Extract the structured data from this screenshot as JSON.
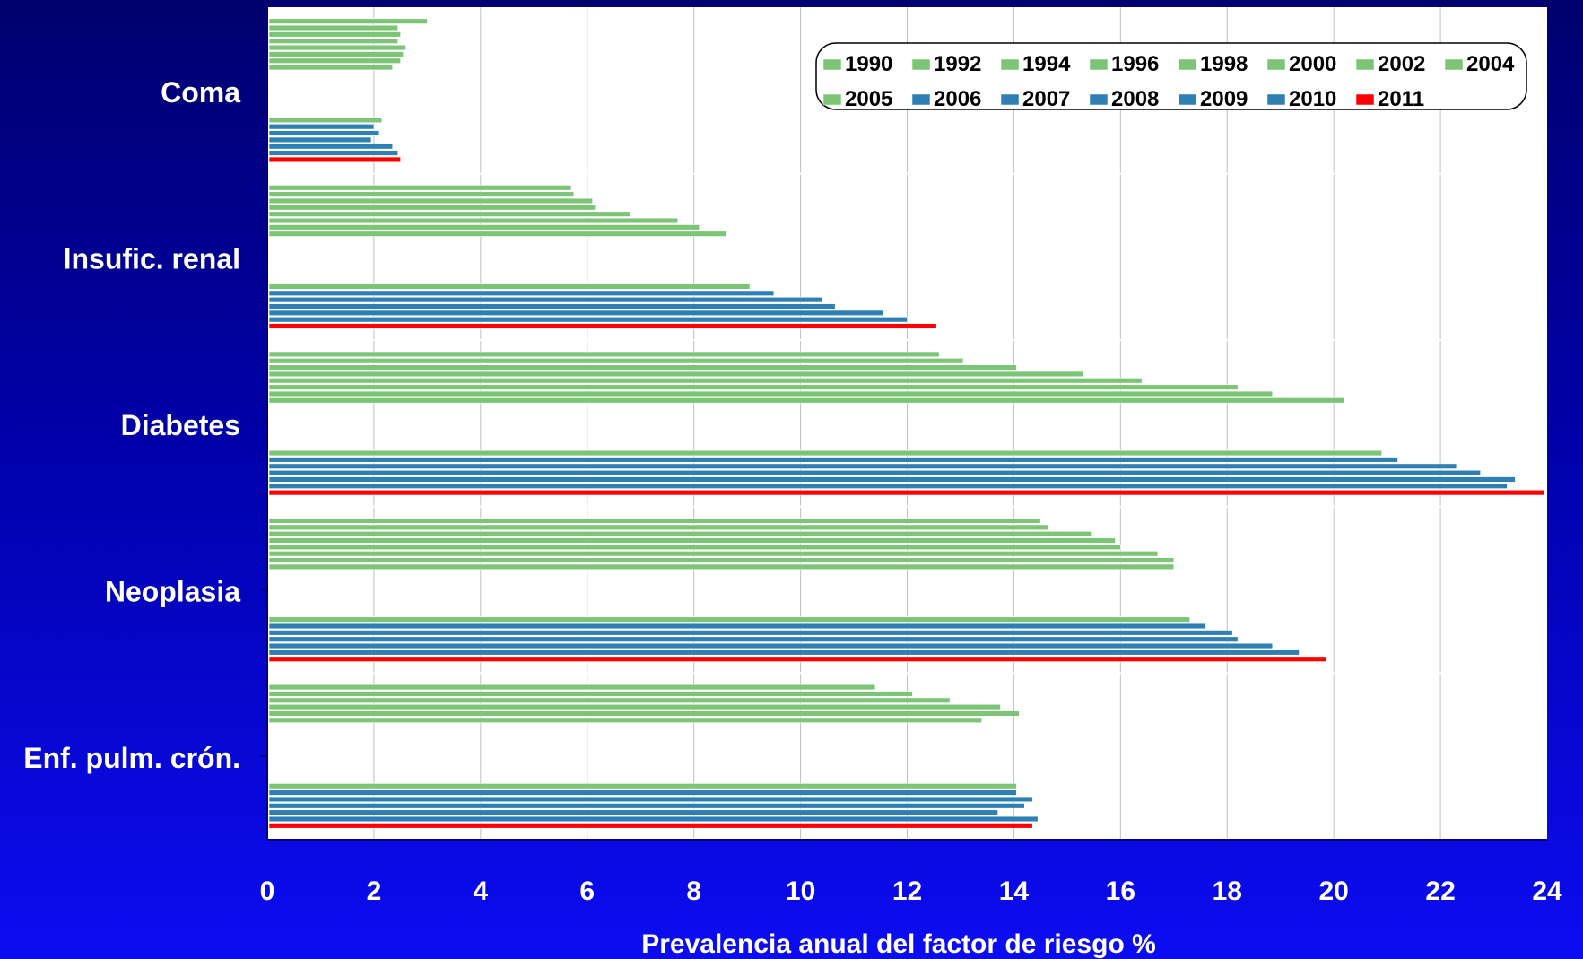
{
  "chart_data": {
    "type": "bar",
    "orientation": "horizontal",
    "xlabel": "Prevalencia anual del factor de riesgo %",
    "xlim": [
      0,
      24
    ],
    "xticks": [
      0,
      2,
      4,
      6,
      8,
      10,
      12,
      14,
      16,
      18,
      20,
      22,
      24
    ],
    "grid": "vertical",
    "legend_position": "top-right",
    "categories": [
      "Coma",
      "Insufic. renal",
      "Diabetes",
      "Neoplasia",
      "Enf. pulm. crón."
    ],
    "series": [
      {
        "name": "1990",
        "color": "#7cc576",
        "values": [
          3.0,
          5.7,
          12.6,
          14.5,
          11.4
        ]
      },
      {
        "name": "",
        "color": "#7cc576",
        "values": [
          2.45,
          5.75,
          13.05,
          14.65,
          12.1
        ]
      },
      {
        "name": "1992",
        "color": "#7cc576",
        "values": [
          2.5,
          6.1,
          14.05,
          15.45,
          12.8
        ]
      },
      {
        "name": "",
        "color": "#7cc576",
        "values": [
          2.45,
          6.15,
          15.3,
          15.9,
          13.75
        ]
      },
      {
        "name": "1994",
        "color": "#7cc576",
        "values": [
          2.6,
          6.8,
          16.4,
          16.0,
          14.1
        ]
      },
      {
        "name": "",
        "color": "#7cc576",
        "values": [
          2.55,
          7.7,
          18.2,
          16.7,
          13.4
        ]
      },
      {
        "name": "1996",
        "color": "#7cc576",
        "values": [
          2.5,
          8.1,
          18.85,
          17.0,
          null
        ]
      },
      {
        "name": "",
        "color": "#7cc576",
        "values": [
          2.35,
          8.6,
          20.2,
          17.0,
          null
        ]
      },
      {
        "name": "1998",
        "color": "#7cc576",
        "values": [
          null,
          null,
          null,
          null,
          null
        ]
      },
      {
        "name": "",
        "color": "#7cc576",
        "values": [
          null,
          null,
          null,
          null,
          null
        ]
      },
      {
        "name": "2000",
        "color": "#7cc576",
        "values": [
          null,
          null,
          null,
          null,
          null
        ]
      },
      {
        "name": "",
        "color": "#7cc576",
        "values": [
          null,
          null,
          null,
          null,
          null
        ]
      },
      {
        "name": "2002",
        "color": "#7cc576",
        "values": [
          null,
          null,
          null,
          null,
          null
        ]
      },
      {
        "name": "",
        "color": "#7cc576",
        "values": [
          null,
          null,
          null,
          null,
          null
        ]
      },
      {
        "name": "2004",
        "color": "#7cc576",
        "values": [
          null,
          null,
          null,
          null,
          null
        ]
      },
      {
        "name": "2005",
        "color": "#7cc576",
        "values": [
          2.15,
          9.05,
          20.9,
          17.3,
          14.05
        ]
      },
      {
        "name": "2006",
        "color": "#2e7fb3",
        "values": [
          2.0,
          9.5,
          21.2,
          17.6,
          14.05
        ]
      },
      {
        "name": "2007",
        "color": "#2e7fb3",
        "values": [
          2.1,
          10.4,
          22.3,
          18.1,
          14.35
        ]
      },
      {
        "name": "2008",
        "color": "#2e7fb3",
        "values": [
          1.95,
          10.65,
          22.75,
          18.2,
          14.2
        ]
      },
      {
        "name": "2009",
        "color": "#2e7fb3",
        "values": [
          2.35,
          11.55,
          23.4,
          18.85,
          13.7
        ]
      },
      {
        "name": "2010",
        "color": "#2e7fb3",
        "values": [
          2.45,
          12.0,
          23.25,
          19.35,
          14.45
        ]
      },
      {
        "name": "2011",
        "color": "#ff0000",
        "values": [
          2.5,
          12.55,
          23.95,
          19.85,
          14.35
        ]
      }
    ],
    "legend": [
      {
        "label": "1990",
        "color": "#7cc576"
      },
      {
        "label": "1992",
        "color": "#7cc576"
      },
      {
        "label": "1994",
        "color": "#7cc576"
      },
      {
        "label": "1996",
        "color": "#7cc576"
      },
      {
        "label": "1998",
        "color": "#7cc576"
      },
      {
        "label": "2000",
        "color": "#7cc576"
      },
      {
        "label": "2002",
        "color": "#7cc576"
      },
      {
        "label": "2004",
        "color": "#7cc576"
      },
      {
        "label": "2005",
        "color": "#7cc576"
      },
      {
        "label": "2006",
        "color": "#2e7fb3"
      },
      {
        "label": "2007",
        "color": "#2e7fb3"
      },
      {
        "label": "2008",
        "color": "#2e7fb3"
      },
      {
        "label": "2009",
        "color": "#2e7fb3"
      },
      {
        "label": "2010",
        "color": "#2e7fb3"
      },
      {
        "label": "2011",
        "color": "#ff0000"
      }
    ]
  }
}
